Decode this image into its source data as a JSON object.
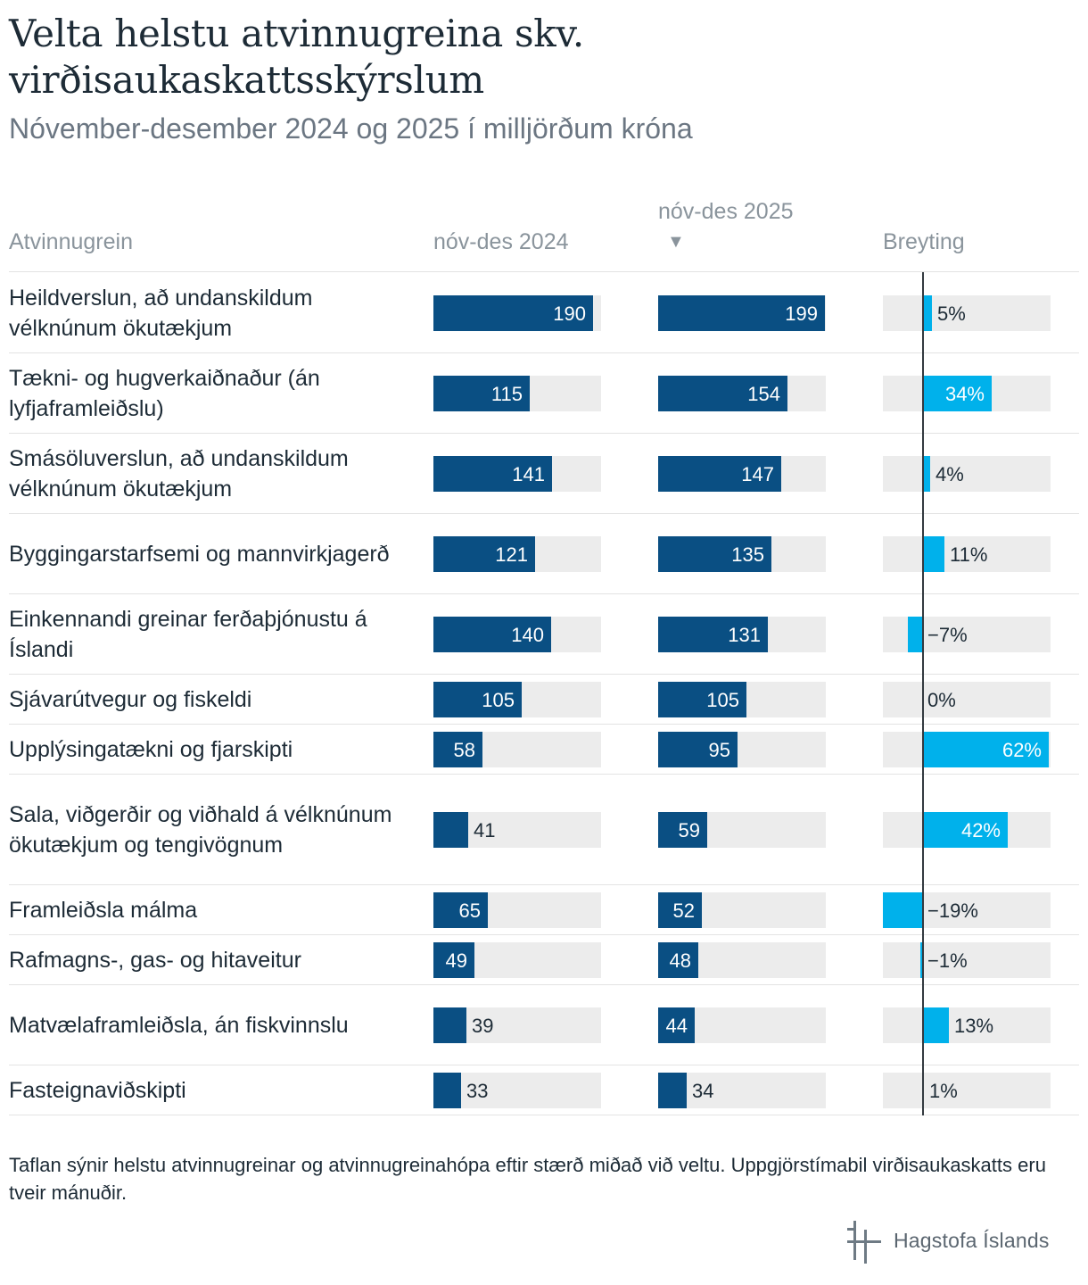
{
  "title": "Velta helstu atvinnugreina skv. virðisaukaskattsskýrslum",
  "subtitle": "Nóvember-desember 2024 og 2025 í milljörðum króna",
  "columns": {
    "category": "Atvinnugrein",
    "col2024": "nóv-des 2024",
    "col2025": "nóv-des 2025",
    "sort_indicator": "▼",
    "change": "Breyting"
  },
  "note": "Taflan sýnir helstu atvinnugreinar og atvinnugreinahópa eftir stærð miðað við veltu. Uppgjörstímabil virðisaukaskatts eru tveir mánuðir.",
  "logo_text": "Hagstofa Íslands",
  "colors": {
    "bar_dark": "#0a4f83",
    "bar_light": "#00b1eb",
    "track": "#ececec"
  },
  "chart_data": {
    "type": "table",
    "value_max": 200,
    "change_max": 62,
    "rows": [
      {
        "label": "Heildverslun, að undanskildum vélknúnum ökutækjum",
        "v2024": 190,
        "v2025": 199,
        "change": 5,
        "change_label": "5%"
      },
      {
        "label": "Tækni- og hugverkaiðnaður (án lyfjaframleiðslu)",
        "v2024": 115,
        "v2025": 154,
        "change": 34,
        "change_label": "34%"
      },
      {
        "label": "Smásöluverslun, að undanskildum vélknúnum ökutækjum",
        "v2024": 141,
        "v2025": 147,
        "change": 4,
        "change_label": "4%"
      },
      {
        "label": "Byggingarstarfsemi og mannvirkjagerð",
        "v2024": 121,
        "v2025": 135,
        "change": 11,
        "change_label": "11%"
      },
      {
        "label": "Einkennandi greinar ferðaþjónustu á Íslandi",
        "v2024": 140,
        "v2025": 131,
        "change": -7,
        "change_label": "−7%"
      },
      {
        "label": "Sjávarútvegur og fiskeldi",
        "v2024": 105,
        "v2025": 105,
        "change": 0,
        "change_label": "0%"
      },
      {
        "label": "Upplýsingatækni og fjarskipti",
        "v2024": 58,
        "v2025": 95,
        "change": 62,
        "change_label": "62%"
      },
      {
        "label": "Sala, viðgerðir og viðhald á vélknúnum ökutækjum og tengivögnum",
        "v2024": 41,
        "v2025": 59,
        "change": 42,
        "change_label": "42%"
      },
      {
        "label": "Framleiðsla málma",
        "v2024": 65,
        "v2025": 52,
        "change": -19,
        "change_label": "−19%"
      },
      {
        "label": "Rafmagns-, gas- og hitaveitur",
        "v2024": 49,
        "v2025": 48,
        "change": -1,
        "change_label": "−1%"
      },
      {
        "label": "Matvælaframleiðsla, án fiskvinnslu",
        "v2024": 39,
        "v2025": 44,
        "change": 13,
        "change_label": "13%"
      },
      {
        "label": "Fasteignaviðskipti",
        "v2024": 33,
        "v2025": 34,
        "change": 1,
        "change_label": "1%"
      }
    ]
  }
}
